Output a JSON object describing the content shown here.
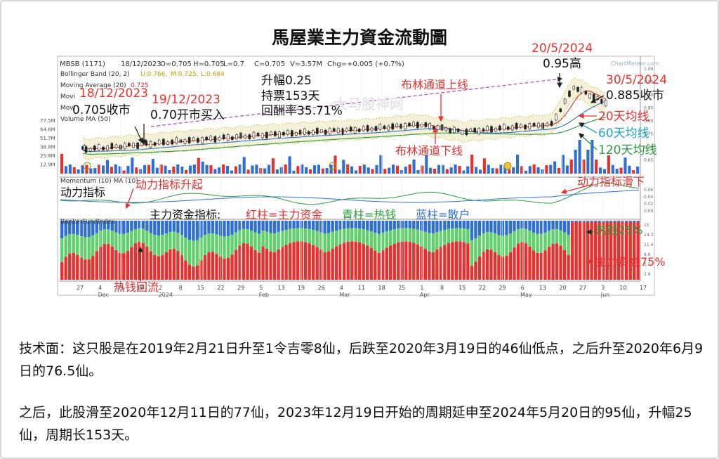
{
  "page_title": "馬屋業主力資金流動圖",
  "chart_header": {
    "symbol": "MBSB (1171)",
    "date": "18/12/2023",
    "open": "O=0.705",
    "high": "H=0.705",
    "low": "L=0.7",
    "close": "C=0.705",
    "volume": "V=3.57M",
    "change": "Chg=+0.005 (+0.7%)",
    "bollinger": "Bollinger Band (20, 2)",
    "bb_u": "U:0.766,",
    "bb_m": "M:0.725,",
    "bb_l": "L:0.684",
    "ma20": "Moving Average (20)",
    "ma20_val": "0.725",
    "ma_cut1": "Movi",
    "ma_cut2": "Movi",
    "vol_ma": "Volume MA (50)",
    "watermark": "ChartMeteor.com"
  },
  "volume_ticks": [
    "77.5M",
    "64.6M",
    "51.7M",
    "38.8M",
    "25.8M",
    "12.9M"
  ],
  "momentum_header": "Momentum (10) MA (10)",
  "momentum_ticks": [
    "0.06",
    "0.04",
    "0.02",
    "0.00"
  ],
  "banker_header": "BankerFundIndex",
  "banker_ticks": [
    "15",
    "14.3",
    "11.4",
    "8.6",
    "5.7",
    "2.9"
  ],
  "price_ticks": [
    "1.00",
    "0.95",
    "0.90",
    "0.85",
    "0.80",
    "0.75",
    "0.70",
    "0.65"
  ],
  "x_ticks": [
    "27",
    "4",
    "11",
    "18",
    "2",
    "8",
    "15",
    "22",
    "29",
    "5",
    "13",
    "19",
    "26",
    "4",
    "11",
    "18",
    "25",
    "1",
    "8",
    "15",
    "22",
    "29",
    "6",
    "13",
    "20",
    "27",
    "3",
    "10",
    "17"
  ],
  "months": [
    "Dec",
    "2024",
    "Feb",
    "Mar",
    "Apr",
    "May",
    "Jun"
  ],
  "annotations": {
    "buy_date_a": "18/12/2023",
    "buy_close": "0.705收市",
    "buy_date_b": "19/12/2023",
    "buy_open": "0.70开市买入",
    "gain1": "升幅0.25",
    "gain2": "持票153天",
    "gain3": "回酬率35.71%",
    "peak_date": "20/5/2024",
    "peak_val": "0.95高",
    "end_date": "30/5/2024",
    "end_close": "0.885收市",
    "bb_upper": "布林通道上线",
    "bb_lower": "布林通道下线",
    "ma20_label": "20天均线",
    "ma60_label": "60天均线",
    "ma120_label": "120天均线",
    "momentum_name": "动力指标",
    "momentum_up": "动力指标升起",
    "momentum_down": "动力指标滑下",
    "fund_prefix": "主力资金指标:",
    "fund_red": "红柱=主力资金",
    "fund_cyan": "青柱=热钱",
    "fund_blue": "蓝柱=散户",
    "hot_money_pct": "热钱25%",
    "main_fund_pct": "主力资金75%",
    "hot_money_return": "热钱回流",
    "watermark_cn": "大马股神网"
  },
  "paragraphs": [
    "技术面：这只股是在2019年2月21日升至1令吉零8仙，后跌至2020年3月19日的46仙低点，之后升至2020年6月9日的76.5仙。",
    "之后，此股滑至2020年12月11日的77仙，2023年12月19日开始的周期延申至2024年5月20日的95仙，升幅25仙，周期长153天。"
  ],
  "colors": {
    "red": "#e8312f",
    "blue": "#2f6fd3",
    "green": "#2a9a3c",
    "cyan": "#1ea3c9",
    "purple": "#a04cc0"
  },
  "chart_data": {
    "type": "line",
    "title": "馬屋業主力資金流動圖",
    "x": [
      "2023-12-18",
      "2023-12-19",
      "2024-01-15",
      "2024-02-15",
      "2024-03-15",
      "2024-04-01",
      "2024-04-15",
      "2024-05-02",
      "2024-05-13",
      "2024-05-20",
      "2024-05-30"
    ],
    "series": [
      {
        "name": "",
        "values": [
          0.705,
          0.7,
          0.73,
          0.76,
          0.78,
          0.8,
          0.77,
          0.79,
          0.8,
          0.95,
          0.885
        ]
      }
    ],
    "ylim": [
      0.65,
      1.0
    ],
    "grid": true
  }
}
